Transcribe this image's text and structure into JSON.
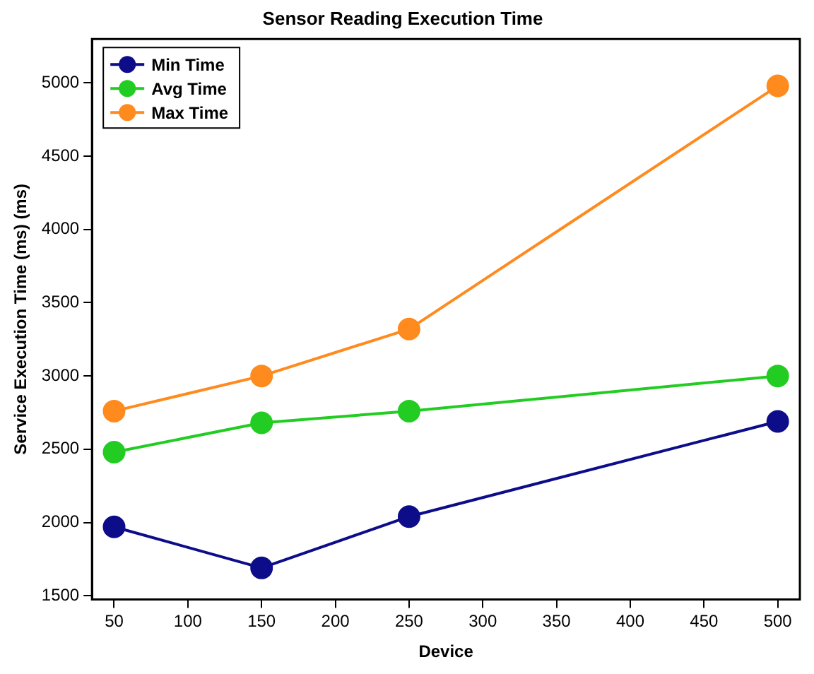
{
  "chart_data": {
    "type": "line",
    "title": "Sensor Reading Execution Time",
    "xlabel": "Device",
    "ylabel": "Service Execution Time (ms) (ms)",
    "x": [
      50,
      150,
      250,
      500
    ],
    "series": [
      {
        "name": "Min Time",
        "color": "#0d0d8a",
        "values": [
          1970,
          1690,
          2040,
          2690
        ]
      },
      {
        "name": "Avg Time",
        "color": "#22cc22",
        "values": [
          2480,
          2680,
          2760,
          3000
        ]
      },
      {
        "name": "Max Time",
        "color": "#ff8a1e",
        "values": [
          2760,
          3000,
          3320,
          4980
        ]
      }
    ],
    "xlim": [
      35,
      515
    ],
    "xticks": [
      50,
      100,
      150,
      200,
      250,
      300,
      350,
      400,
      450,
      500
    ],
    "ylim": [
      1475,
      5300
    ],
    "yticks": [
      1500,
      2000,
      2500,
      3000,
      3500,
      4000,
      4500,
      5000
    ],
    "grid": false,
    "legend": "top left",
    "marker": "circle",
    "line_style": "solid"
  }
}
